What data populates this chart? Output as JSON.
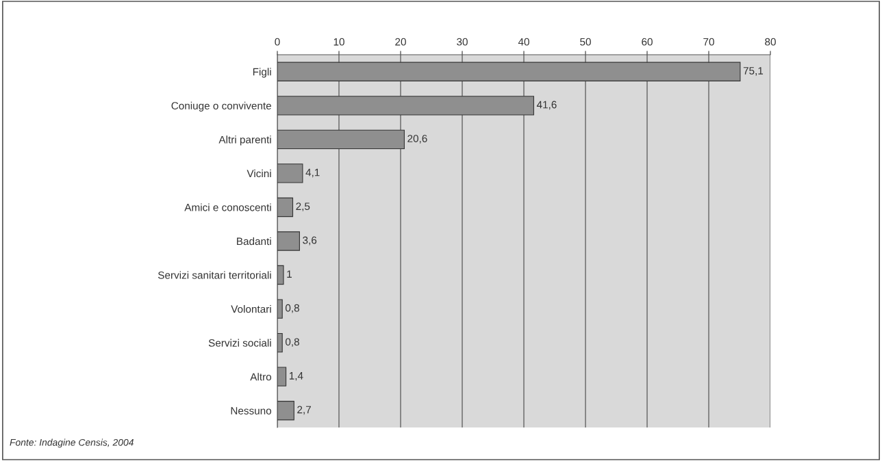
{
  "chart_data": {
    "type": "bar",
    "orientation": "horizontal",
    "categories": [
      "Figli",
      "Coniuge o convivente",
      "Altri parenti",
      "Vicini",
      "Amici e conoscenti",
      "Badanti",
      "Servizi sanitari territoriali",
      "Volontari",
      "Servizi sociali",
      "Altro",
      "Nessuno"
    ],
    "values": [
      75.1,
      41.6,
      20.6,
      4.1,
      2.5,
      3.6,
      1,
      0.8,
      0.8,
      1.4,
      2.7
    ],
    "value_labels": [
      "75,1",
      "41,6",
      "20,6",
      "4,1",
      "2,5",
      "3,6",
      "1",
      "0,8",
      "0,8",
      "1,4",
      "2,7"
    ],
    "color": "#8f8f8f",
    "xlim": [
      0,
      80
    ],
    "xticks": [
      0,
      10,
      20,
      30,
      40,
      50,
      60,
      70,
      80
    ],
    "grid": "x",
    "legend": false,
    "annotations": [
      "Fonte: Indagine Censis, 2004"
    ]
  }
}
